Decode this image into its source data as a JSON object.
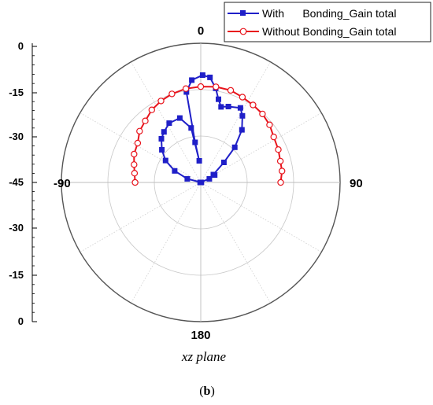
{
  "chart_data": {
    "type": "polar",
    "plane_label": "xz plane",
    "caption": {
      "open": "(",
      "letter": "b",
      "close": ")"
    },
    "angle_labels": {
      "top": "0",
      "right": "90",
      "bottom": "180",
      "left": "-90"
    },
    "radial_ticks": [
      "0",
      "-15",
      "-30",
      "-45",
      "-30",
      "-15",
      "0"
    ],
    "r_range_db": [
      -45,
      0
    ],
    "grid": true,
    "legend_position": "top-right",
    "series": [
      {
        "name": "With      Bonding_Gain total",
        "color": "#1f1fc8",
        "marker": "filled-square",
        "points": [
          {
            "theta": -90,
            "r": -45.2
          },
          {
            "theta": -75,
            "r": -40.5
          },
          {
            "theta": -66,
            "r": -35.8
          },
          {
            "theta": -58,
            "r": -31.6
          },
          {
            "theta": -50,
            "r": -28.6
          },
          {
            "theta": -42,
            "r": -26.0
          },
          {
            "theta": -36,
            "r": -24.8
          },
          {
            "theta": -28,
            "r": -23.3
          },
          {
            "theta": -18,
            "r": -23.1
          },
          {
            "theta": -10,
            "r": -27.1
          },
          {
            "theta": -4,
            "r": -38.0
          },
          {
            "theta": -8,
            "r": -31.9
          },
          {
            "theta": -9,
            "r": -15.4
          },
          {
            "theta": -5,
            "r": -11.8
          },
          {
            "theta": 1,
            "r": -10.3
          },
          {
            "theta": 5,
            "r": -10.9
          },
          {
            "theta": 9,
            "r": -14.2
          },
          {
            "theta": 12,
            "r": -17.5
          },
          {
            "theta": 15,
            "r": -19.7
          },
          {
            "theta": 20,
            "r": -18.9
          },
          {
            "theta": 28,
            "r": -17.7
          },
          {
            "theta": 32,
            "r": -19.6
          },
          {
            "theta": 38,
            "r": -23.4
          },
          {
            "theta": 44,
            "r": -29.2
          },
          {
            "theta": 49,
            "r": -35.1
          },
          {
            "theta": 58,
            "r": -40.2
          },
          {
            "theta": 62,
            "r": -39.9
          },
          {
            "theta": 67,
            "r": -42.0
          },
          {
            "theta": 90,
            "r": -45.2
          }
        ]
      },
      {
        "name": "Without Bonding_Gain total",
        "color": "#e8141c",
        "marker": "open-circle",
        "points": [
          {
            "theta": -90,
            "r": -23.8
          },
          {
            "theta": -82,
            "r": -23.4
          },
          {
            "theta": -75,
            "r": -22.7
          },
          {
            "theta": -67,
            "r": -21.6
          },
          {
            "theta": -58,
            "r": -21.0
          },
          {
            "theta": -50,
            "r": -19.2
          },
          {
            "theta": -42,
            "r": -18.2
          },
          {
            "theta": -34,
            "r": -16.7
          },
          {
            "theta": -26,
            "r": -15.7
          },
          {
            "theta": -18,
            "r": -14.9
          },
          {
            "theta": -9,
            "r": -14.3
          },
          {
            "theta": 0,
            "r": -14.0
          },
          {
            "theta": 9,
            "r": -13.7
          },
          {
            "theta": 18,
            "r": -13.7
          },
          {
            "theta": 26,
            "r": -14.3
          },
          {
            "theta": 34,
            "r": -14.8
          },
          {
            "theta": 42,
            "r": -15.2
          },
          {
            "theta": 50,
            "r": -16.0
          },
          {
            "theta": 58,
            "r": -17.2
          },
          {
            "theta": 67,
            "r": -17.8
          },
          {
            "theta": 75,
            "r": -18.4
          },
          {
            "theta": 82,
            "r": -18.5
          },
          {
            "theta": 90,
            "r": -19.2
          }
        ]
      }
    ]
  }
}
